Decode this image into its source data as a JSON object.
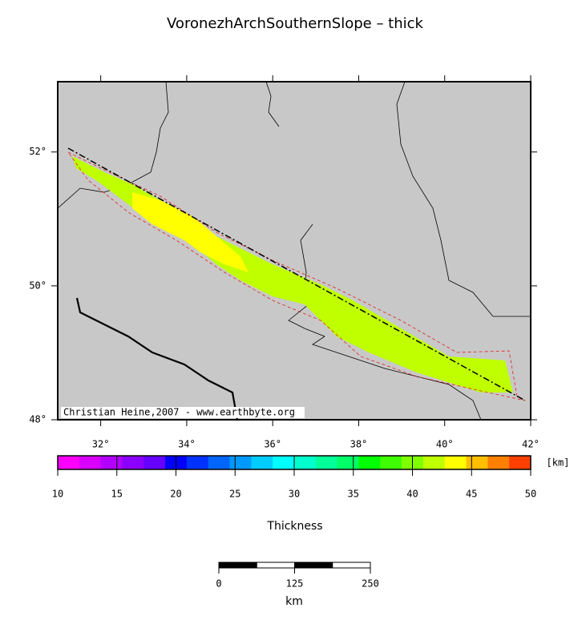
{
  "map": {
    "title": "VoronezhArchSouthernSlope – thick",
    "lon_range": [
      31,
      42
    ],
    "lat_range": [
      48,
      53.05
    ],
    "lon_ticks": [
      {
        "value": 32,
        "label": "32°"
      },
      {
        "value": 34,
        "label": "34°"
      },
      {
        "value": 36,
        "label": "36°"
      },
      {
        "value": 38,
        "label": "38°"
      },
      {
        "value": 40,
        "label": "40°"
      },
      {
        "value": 42,
        "label": "42°"
      }
    ],
    "lat_ticks": [
      {
        "value": 48,
        "label": "48°"
      },
      {
        "value": 50,
        "label": "50°"
      },
      {
        "value": 52,
        "label": "52°"
      }
    ],
    "credit": "Christian Heine,2007 - www.earthbyte.org"
  },
  "colorbar": {
    "label": "Thickness",
    "unit": "[km]",
    "range": [
      10,
      50
    ],
    "ticks": [
      10,
      15,
      20,
      25,
      30,
      35,
      40,
      45,
      50
    ],
    "colors": [
      "#ff00ff",
      "#d900ff",
      "#b300ff",
      "#8c00ff",
      "#6600ff",
      "#0000ff",
      "#0033ff",
      "#0066ff",
      "#0099ff",
      "#00ccff",
      "#00ffff",
      "#00ffcc",
      "#00ff99",
      "#00ff66",
      "#00ff00",
      "#40ff00",
      "#80ff00",
      "#c0ff00",
      "#ffff00",
      "#ffbf00",
      "#ff8000",
      "#ff4000"
    ]
  },
  "scalebar": {
    "unit": "km",
    "range": [
      0,
      250
    ],
    "ticks": [
      0,
      125,
      250
    ]
  }
}
